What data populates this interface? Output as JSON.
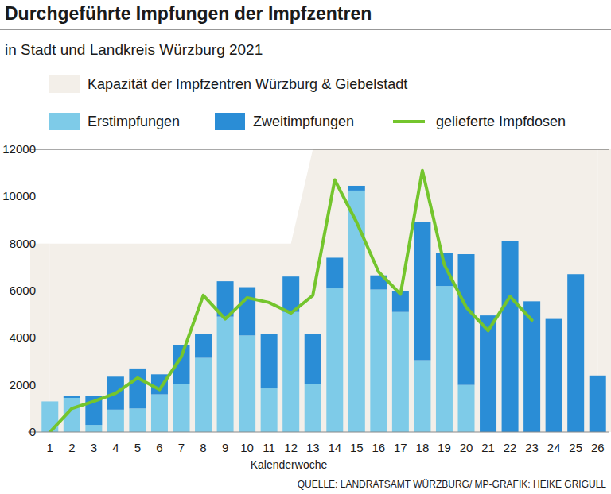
{
  "chart_data": {
    "type": "bar",
    "title": "Durchgeführte Impfungen der Impfzentren",
    "subtitle": "in Stadt und Landkreis Würzburg 2021",
    "x_label": "Kalenderwoche",
    "source": "QUELLE: LANDRATSAMT WÜRZBURG/ MP-GRAFIK: HEIKE GRIGULL",
    "categories": [
      "1",
      "2",
      "3",
      "4",
      "5",
      "6",
      "7",
      "8",
      "9",
      "10",
      "11",
      "12",
      "13",
      "14",
      "15",
      "16",
      "17",
      "18",
      "19",
      "20",
      "21",
      "22",
      "23",
      "24",
      "25",
      "26"
    ],
    "series": [
      {
        "name": "Kapazität der Impfzentren Würzburg & Giebelstadt",
        "type": "area",
        "color": "#f3efe9",
        "values": [
          8000,
          8000,
          8000,
          8000,
          8000,
          8000,
          8000,
          8000,
          8000,
          8000,
          8000,
          8000,
          12000,
          12000,
          12000,
          12000,
          12000,
          12000,
          12000,
          12000,
          12000,
          12000,
          12000,
          12000,
          12000,
          12000
        ]
      },
      {
        "name": "Erstimpfungen",
        "type": "bar",
        "color": "#7ecbe8",
        "values": [
          1300,
          1450,
          300,
          950,
          1000,
          1600,
          2050,
          3150,
          4900,
          4100,
          1850,
          5100,
          2050,
          6100,
          10250,
          6050,
          5100,
          3050,
          6200,
          2000,
          0,
          0,
          0,
          0,
          0,
          0
        ]
      },
      {
        "name": "Zweitimpfungen",
        "type": "bar",
        "color": "#2a8dd6",
        "values": [
          0,
          100,
          1250,
          1400,
          1700,
          850,
          1650,
          1000,
          1500,
          2050,
          2300,
          1500,
          2100,
          1300,
          200,
          600,
          900,
          5850,
          1400,
          5550,
          4950,
          8100,
          5550,
          4800,
          6700,
          2400
        ]
      },
      {
        "name": "gelieferte Impfdosen",
        "type": "line",
        "color": "#74c52d",
        "values": [
          0,
          1000,
          1300,
          1650,
          2300,
          1800,
          3200,
          5800,
          4800,
          5700,
          5500,
          5050,
          5800,
          10700,
          8900,
          6800,
          5850,
          11100,
          7100,
          5300,
          4300,
          5750,
          4750,
          null,
          null,
          null
        ]
      }
    ],
    "stacked": true,
    "ylim": [
      0,
      12000
    ],
    "yticks": [
      0,
      2000,
      4000,
      6000,
      8000,
      10000,
      12000
    ],
    "grid": false
  }
}
